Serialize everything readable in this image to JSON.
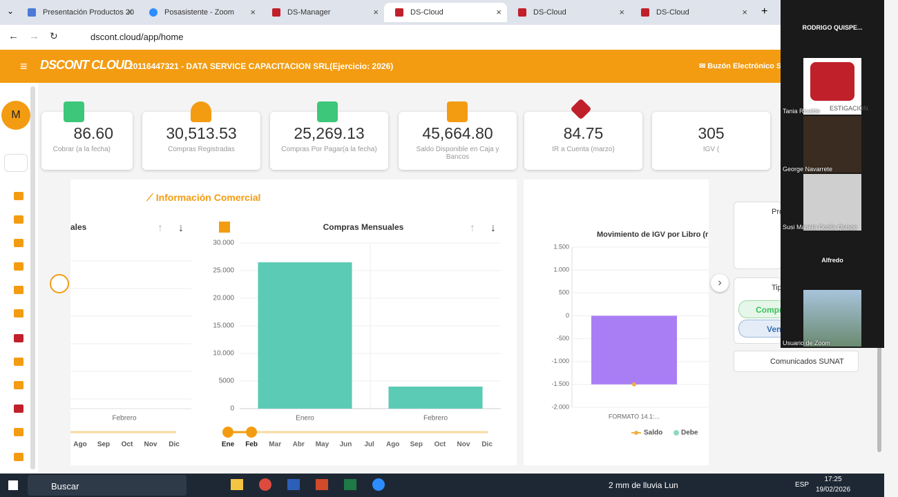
{
  "browser": {
    "tabs": [
      "Presentación Productos 20",
      "Posasistente - Zoom",
      "DS-Manager",
      "DS-Cloud",
      "DS-Cloud",
      "DS-Cloud"
    ],
    "url": "dscont.cloud/app/home"
  },
  "header": {
    "logo": "DSCONT CLOUD",
    "company": "20116447321 - DATA SERVICE CAPACITACION SRL(Ejercicio: 2026)",
    "mailbox": "Buzón Electrónico S"
  },
  "sidebar": {
    "avatar": "M"
  },
  "cards": [
    {
      "value": "86.60",
      "label": "Cobrar (a la fecha)"
    },
    {
      "value": "30,513.53",
      "label": "Compras Registradas"
    },
    {
      "value": "25,269.13",
      "label": "Compras Por Pagar(a la fecha)"
    },
    {
      "value": "45,664.80",
      "label": "Saldo Disponible en Caja y Bancos"
    },
    {
      "value": "84.75",
      "label": "IR a Cuenta (marzo)"
    },
    {
      "value": "305",
      "label": "IGV ("
    }
  ],
  "section_title": "Información Comercial",
  "left_chart": {
    "title": "ales",
    "category": "Febrero",
    "months": [
      "Ago",
      "Sep",
      "Oct",
      "Nov",
      "Dic"
    ]
  },
  "chart_data": [
    {
      "type": "bar",
      "title": "Compras Mensuales",
      "categories": [
        "Enero",
        "Febrero"
      ],
      "values": [
        26500,
        4000
      ],
      "color": "#5ccbb6",
      "ylim": [
        0,
        30000
      ],
      "yticks": [
        0,
        {
          "value": 5000,
          "label": "5000"
        },
        {
          "value": 10000,
          "label": "10.000"
        },
        {
          "value": 15000,
          "label": "15.000"
        },
        {
          "value": 20000,
          "label": "20.000"
        },
        {
          "value": 25000,
          "label": "25.000"
        },
        {
          "value": 30000,
          "label": "30.000"
        }
      ],
      "grid": true,
      "months": [
        "Ene",
        "Feb",
        "Mar",
        "Abr",
        "May",
        "Jun",
        "Jul",
        "Ago",
        "Sep",
        "Oct",
        "Nov",
        "Dic"
      ]
    },
    {
      "type": "combo",
      "title": "Movimiento de IGV por Libro (r",
      "categories": [
        "FORMATO 14.1:..."
      ],
      "series": [
        {
          "name": "Saldo",
          "color": "#f0b040",
          "values": [
            -1500
          ]
        },
        {
          "name": "Debe",
          "color": "#a97ef5",
          "values": [
            -1500
          ]
        }
      ],
      "ylim": [
        -2000,
        1500
      ],
      "yticks": [
        {
          "value": -2000,
          "label": "-2.000"
        },
        {
          "value": -1500,
          "label": "-1.500"
        },
        {
          "value": -1000,
          "label": "-1.000"
        },
        -500,
        0,
        500,
        {
          "value": 1000,
          "label": "1.000"
        },
        {
          "value": 1500,
          "label": "1.500"
        }
      ],
      "grid": true
    }
  ],
  "right_panel": {
    "item1": "Pro",
    "item2": "Tip",
    "buy": "Compr",
    "sell": "Venta:",
    "sunat": "Comunicados SUNAT"
  },
  "zoom": {
    "host": "RODRIGO  QUISPE...",
    "logo_text": "ESTIGACIÓN",
    "participants": [
      "Tania Ricalde",
      "George Navarrete",
      "Susi Mariela Ccolla Quispe",
      "Alfredo",
      "Usuario de Zoom"
    ]
  },
  "taskbar": {
    "search": "Buscar",
    "weather": "2 mm de lluvia Lun",
    "lang": "ESP",
    "time": "17:25",
    "date": "19/02/2026"
  }
}
